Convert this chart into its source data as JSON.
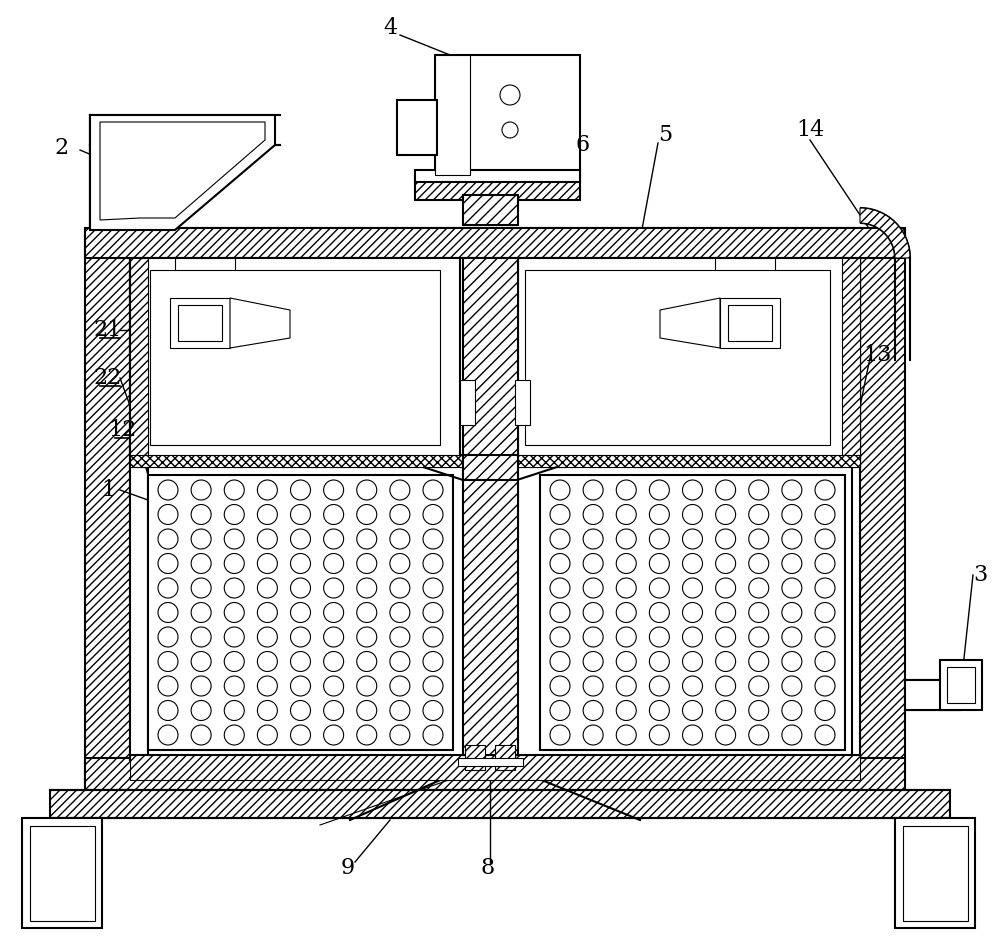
{
  "bg_color": "#ffffff",
  "line_color": "#000000",
  "fig_width": 10.0,
  "fig_height": 9.48
}
